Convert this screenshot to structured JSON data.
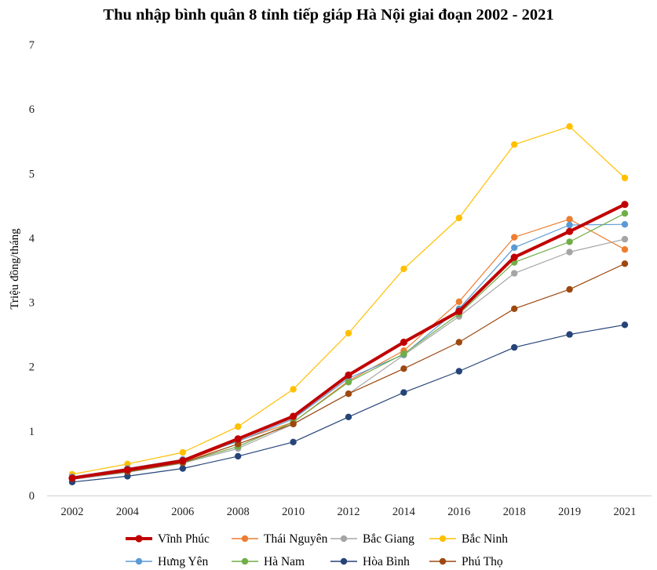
{
  "chart_data": {
    "type": "line",
    "title": "Thu nhập bình quân 8 tỉnh tiếp giáp Hà Nội giai đoạn 2002 - 2021",
    "xlabel": "",
    "ylabel": "Triệu đồng/tháng",
    "ylim": [
      0,
      7
    ],
    "yticks": [
      "0",
      "1",
      "2",
      "3",
      "4",
      "5",
      "6",
      "7"
    ],
    "categories": [
      "2002",
      "2004",
      "2006",
      "2008",
      "2010",
      "2012",
      "2014",
      "2016",
      "2018",
      "2019",
      "2021"
    ],
    "grid": false,
    "legend_position": "bottom",
    "series": [
      {
        "name": "Vĩnh Phúc",
        "color": "#c00000",
        "bold": true,
        "values": [
          0.27,
          0.4,
          0.54,
          0.88,
          1.23,
          1.87,
          2.38,
          2.86,
          3.7,
          4.1,
          4.52
        ]
      },
      {
        "name": "Thái Nguyên",
        "color": "#ed7d31",
        "bold": false,
        "values": [
          0.26,
          0.37,
          0.52,
          0.85,
          1.14,
          1.78,
          2.25,
          3.01,
          4.01,
          4.29,
          3.82
        ]
      },
      {
        "name": "Bắc Giang",
        "color": "#a5a5a5",
        "bold": false,
        "values": [
          0.25,
          0.36,
          0.5,
          0.73,
          1.11,
          1.58,
          2.18,
          2.78,
          3.45,
          3.78,
          3.98
        ]
      },
      {
        "name": "Bắc Ninh",
        "color": "#ffc000",
        "bold": false,
        "values": [
          0.33,
          0.49,
          0.67,
          1.07,
          1.65,
          2.52,
          3.52,
          4.31,
          5.45,
          5.73,
          4.93
        ]
      },
      {
        "name": "Hưng Yên",
        "color": "#5b9bd5",
        "bold": false,
        "values": [
          0.29,
          0.42,
          0.56,
          0.84,
          1.19,
          1.82,
          2.19,
          2.9,
          3.85,
          4.2,
          4.21
        ]
      },
      {
        "name": "Hà Nam",
        "color": "#70ad47",
        "bold": false,
        "values": [
          0.27,
          0.38,
          0.51,
          0.76,
          1.14,
          1.76,
          2.2,
          2.82,
          3.62,
          3.94,
          4.38
        ]
      },
      {
        "name": "Hòa Bình",
        "color": "#264478",
        "bold": false,
        "values": [
          0.21,
          0.3,
          0.42,
          0.61,
          0.83,
          1.22,
          1.6,
          1.93,
          2.3,
          2.5,
          2.65
        ]
      },
      {
        "name": "Phú Thọ",
        "color": "#9e480e",
        "bold": false,
        "values": [
          0.26,
          0.37,
          0.51,
          0.8,
          1.11,
          1.58,
          1.97,
          2.38,
          2.9,
          3.2,
          3.6
        ]
      }
    ]
  }
}
